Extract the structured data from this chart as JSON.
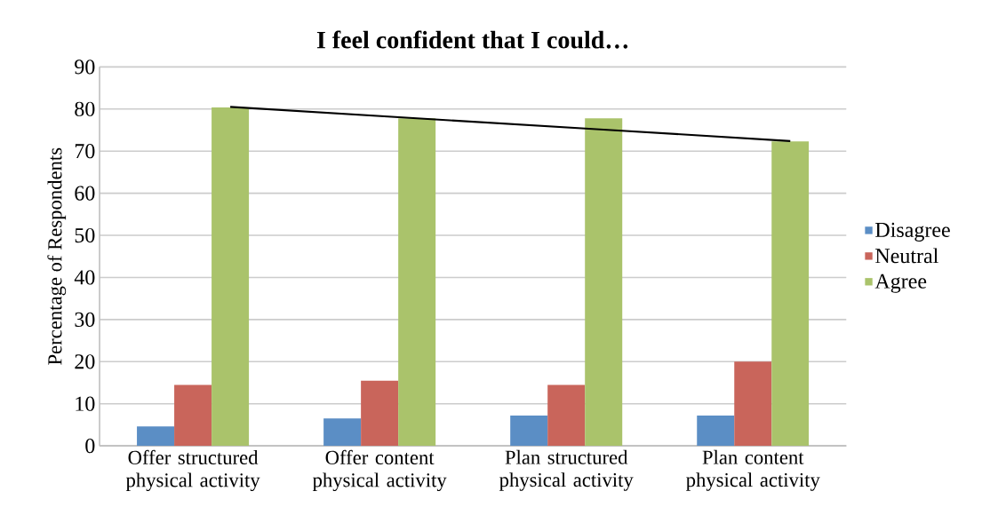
{
  "chart_data": {
    "type": "bar",
    "title": "I feel confident that I could…",
    "ylabel": "Percentage of Respondents",
    "categories": [
      "Offer structured physical activity",
      "Offer content physical activity",
      "Plan structured physical activity",
      "Plan content physical activity"
    ],
    "series": [
      {
        "name": "Disagree",
        "color": "#5b8ec5",
        "values": [
          4.6,
          6.5,
          7.2,
          7.2
        ]
      },
      {
        "name": "Neutral",
        "color": "#c9655b",
        "values": [
          14.5,
          15.5,
          14.5,
          20.0
        ]
      },
      {
        "name": "Agree",
        "color": "#aac36b",
        "values": [
          80.4,
          77.8,
          77.8,
          72.3
        ]
      },
      {
        "type": "line",
        "color": "#000000",
        "values": [
          80.5,
          77.8,
          75.1,
          72.4
        ]
      }
    ],
    "ylim": [
      0,
      90
    ],
    "yticks": [
      0,
      10,
      20,
      30,
      40,
      50,
      60,
      70,
      80,
      90
    ],
    "grid": "y",
    "legend": "right"
  }
}
